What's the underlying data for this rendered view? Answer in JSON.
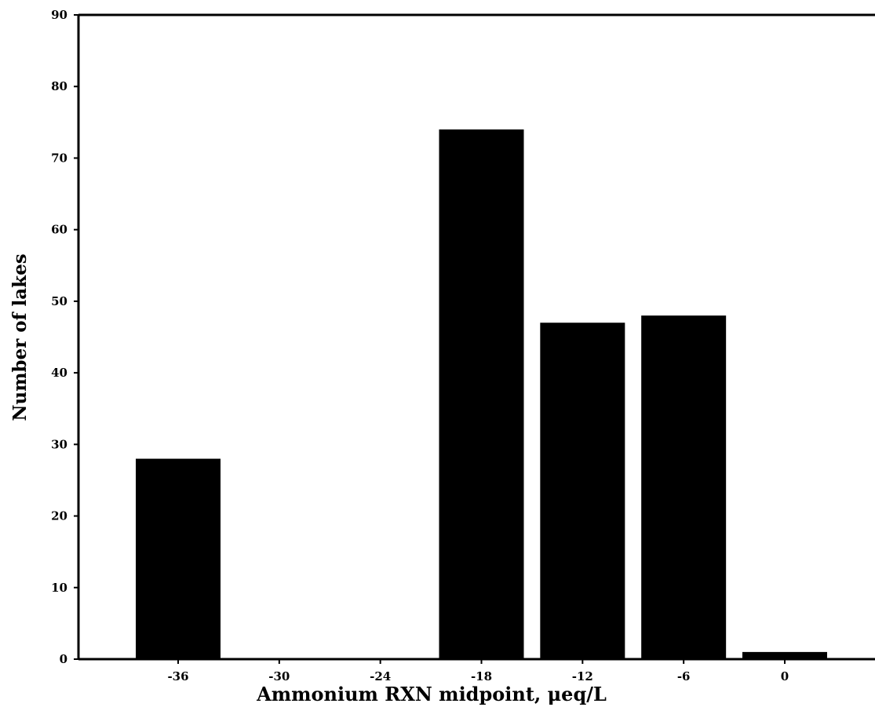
{
  "chart_data": {
    "type": "bar",
    "title": "",
    "xlabel": "Ammonium RXN midpoint, μeq/L",
    "ylabel": "Number of lakes",
    "x_ticks": [
      "-36",
      "-30",
      "-24",
      "-18",
      "-12",
      "-6",
      "0"
    ],
    "y_ticks": [
      "0",
      "10",
      "20",
      "30",
      "40",
      "50",
      "60",
      "70",
      "80",
      "90"
    ],
    "ylim": [
      0,
      90
    ],
    "bars": [
      {
        "x": -36,
        "value": 28
      },
      {
        "x": -18,
        "value": 74
      },
      {
        "x": -12,
        "value": 47
      },
      {
        "x": -6,
        "value": 48
      },
      {
        "x": 0,
        "value": 1
      }
    ],
    "bar_color": "#000000",
    "grid": false,
    "legend": "none"
  }
}
